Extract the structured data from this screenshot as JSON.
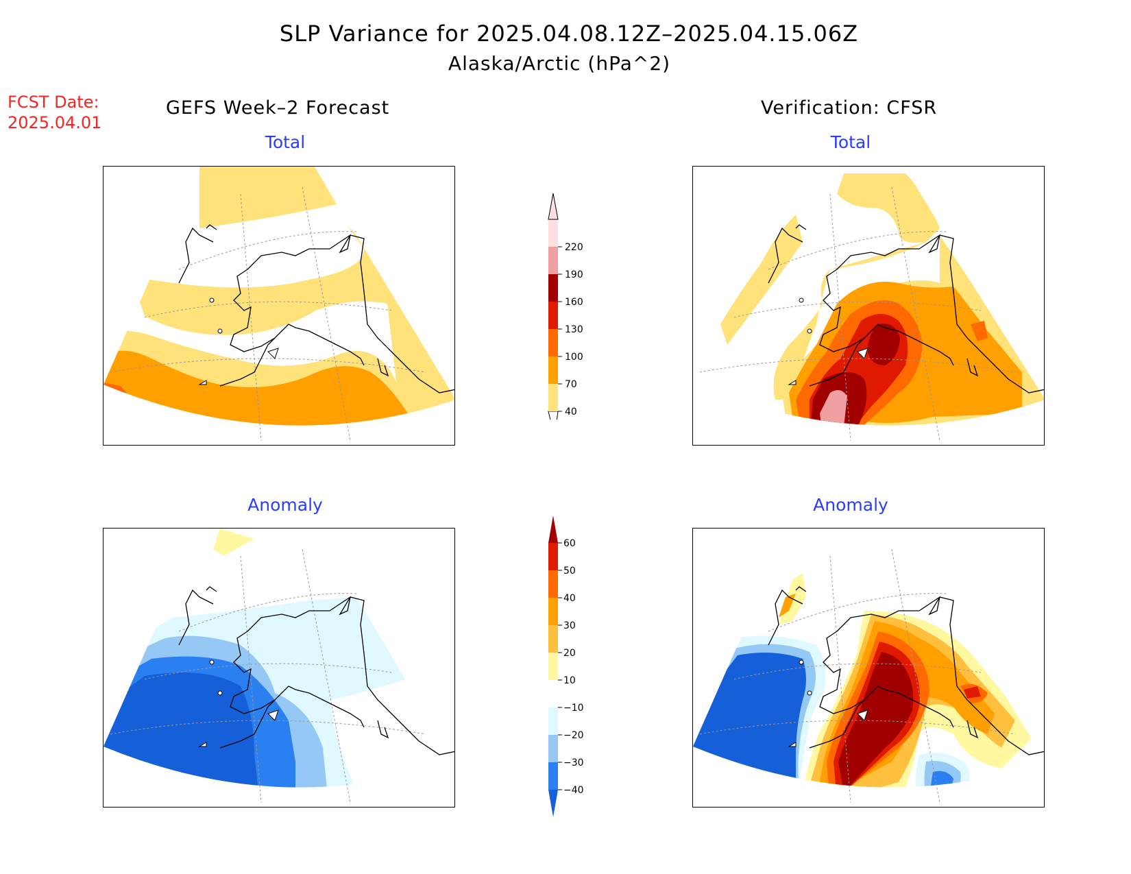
{
  "header": {
    "title": "SLP Variance for 2025.04.08.12Z–2025.04.15.06Z",
    "subtitle": "Alaska/Arctic (hPa^2)",
    "fcst_label": "FCST Date:",
    "fcst_date": "2025.04.01"
  },
  "columns": {
    "left": "GEFS Week–2 Forecast",
    "right": "Verification: CFSR"
  },
  "panels": {
    "top_left": "Total",
    "top_right": "Total",
    "bottom_left": "Anomaly",
    "bottom_right": "Anomaly"
  },
  "colorbars": {
    "total": {
      "levels": [
        "40",
        "70",
        "100",
        "130",
        "160",
        "190",
        "220"
      ],
      "colors": [
        "#ffe27a",
        "#ff9f00",
        "#ff6a00",
        "#e01a00",
        "#a00000",
        "#f0a0a0",
        "#ffe0e0"
      ]
    },
    "anomaly": {
      "levels": [
        "−40",
        "−30",
        "−20",
        "−10",
        "10",
        "20",
        "30",
        "40",
        "50",
        "60"
      ],
      "colors": [
        "#1560d8",
        "#2a80f0",
        "#96c8f5",
        "#e0f8ff",
        "#ffffff",
        "#fff8a0",
        "#ffc040",
        "#ff9f00",
        "#ff6a00",
        "#e01a00",
        "#a00000"
      ]
    }
  }
}
